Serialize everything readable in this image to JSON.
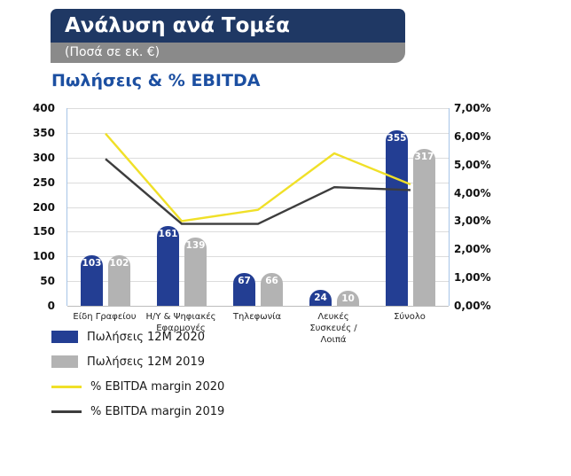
{
  "header": {
    "title": "Ανάλυση ανά Τομέα",
    "subtitle": "(Ποσά σε εκ. €)"
  },
  "chart_data": {
    "type": "combo-bar-line",
    "title": "Πωλήσεις & % EBITDA",
    "categories": [
      "Είδη Γραφείου",
      "Η/Υ & Ψηφιακές Εφαρμογές",
      "Τηλεφωνία",
      "Λευκές Συσκευές / Λοιπά",
      "Σύνολο"
    ],
    "bar_series": [
      {
        "name": "Πωλήσεις 12M 2020",
        "color": "#233E93",
        "values": [
          103,
          161,
          67,
          24,
          355
        ]
      },
      {
        "name": "Πωλήσεις 12M 2019",
        "color": "#B3B3B3",
        "values": [
          102,
          139,
          66,
          10,
          317
        ]
      }
    ],
    "line_series": [
      {
        "name": "% EBITDA margin 2020",
        "color": "#F0E028",
        "values": [
          6.1,
          3.0,
          3.4,
          5.4,
          4.3
        ]
      },
      {
        "name": "% EBITDA margin 2019",
        "color": "#3D3D3D",
        "values": [
          5.2,
          2.9,
          2.9,
          4.2,
          4.1
        ]
      }
    ],
    "left_axis": {
      "min": 0,
      "max": 400,
      "step": 50,
      "ticks_top_to_bottom": [
        "400",
        "350",
        "300",
        "250",
        "200",
        "150",
        "100",
        "50",
        "0"
      ]
    },
    "right_axis": {
      "min": 0,
      "max": 7,
      "step": 1,
      "ticks_top_to_bottom": [
        "7,00%",
        "6,00%",
        "5,00%",
        "4,00%",
        "3,00%",
        "2,00%",
        "1,00%",
        "0,00%"
      ]
    },
    "grid": true,
    "legend_position": "bottom-left"
  }
}
